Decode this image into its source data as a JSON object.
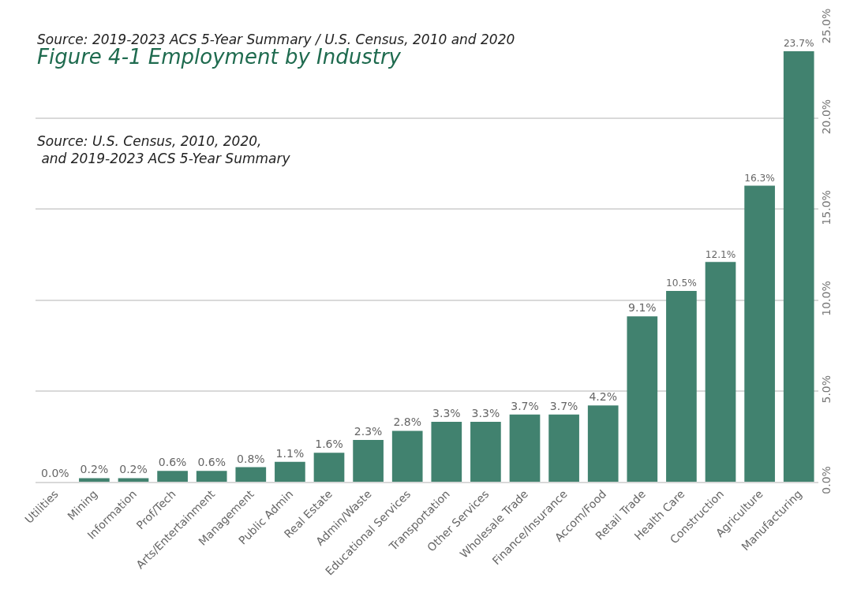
{
  "chart_data": {
    "type": "bar",
    "title": "Figure 4-1 Employment by Industry",
    "annotations": [
      "Source: 2019-2023 ACS 5-Year Summary / U.S. Census, 2010 and 2020",
      "Source: U.S. Census, 2010, 2020,\n and 2019-2023 ACS 5-Year Summary"
    ],
    "categories": [
      "Utilities",
      "Mining",
      "Information",
      "Prof/Tech",
      "Arts/Entertainment",
      "Management",
      "Public Admin",
      "Real Estate",
      "Admin/Waste",
      "Educational Services",
      "Transportation",
      "Other Services",
      "Wholesale Trade",
      "Finance/Insurance",
      "Accom/Food",
      "Retail Trade",
      "Health Care",
      "Construction",
      "Agriculture",
      "Manufacturing"
    ],
    "values": [
      0.0,
      0.2,
      0.2,
      0.6,
      0.6,
      0.8,
      1.1,
      1.6,
      2.3,
      2.8,
      3.3,
      3.3,
      3.7,
      3.7,
      4.2,
      9.1,
      10.5,
      12.1,
      16.3,
      23.7
    ],
    "value_labels": [
      "0.0%",
      "0.2%",
      "0.2%",
      "0.6%",
      "0.6%",
      "0.8%",
      "1.1%",
      "1.6%",
      "2.3%",
      "2.8%",
      "3.3%",
      "3.3%",
      "3.7%",
      "3.7%",
      "4.2%",
      "9.1%",
      "10.5%",
      "12.1%",
      "16.3%",
      "23.7%"
    ],
    "color": "#41826f",
    "ylim": [
      0,
      25
    ],
    "yticks": [
      {
        "value": 0,
        "label": "0.0%"
      },
      {
        "value": 5,
        "label": "5.0%"
      },
      {
        "value": 10,
        "label": "10.0%"
      },
      {
        "value": 15,
        "label": "15.0%"
      },
      {
        "value": 20,
        "label": "20.0%"
      },
      {
        "value": 25,
        "label": "25.0%"
      }
    ],
    "grid": "y",
    "legend": false
  }
}
